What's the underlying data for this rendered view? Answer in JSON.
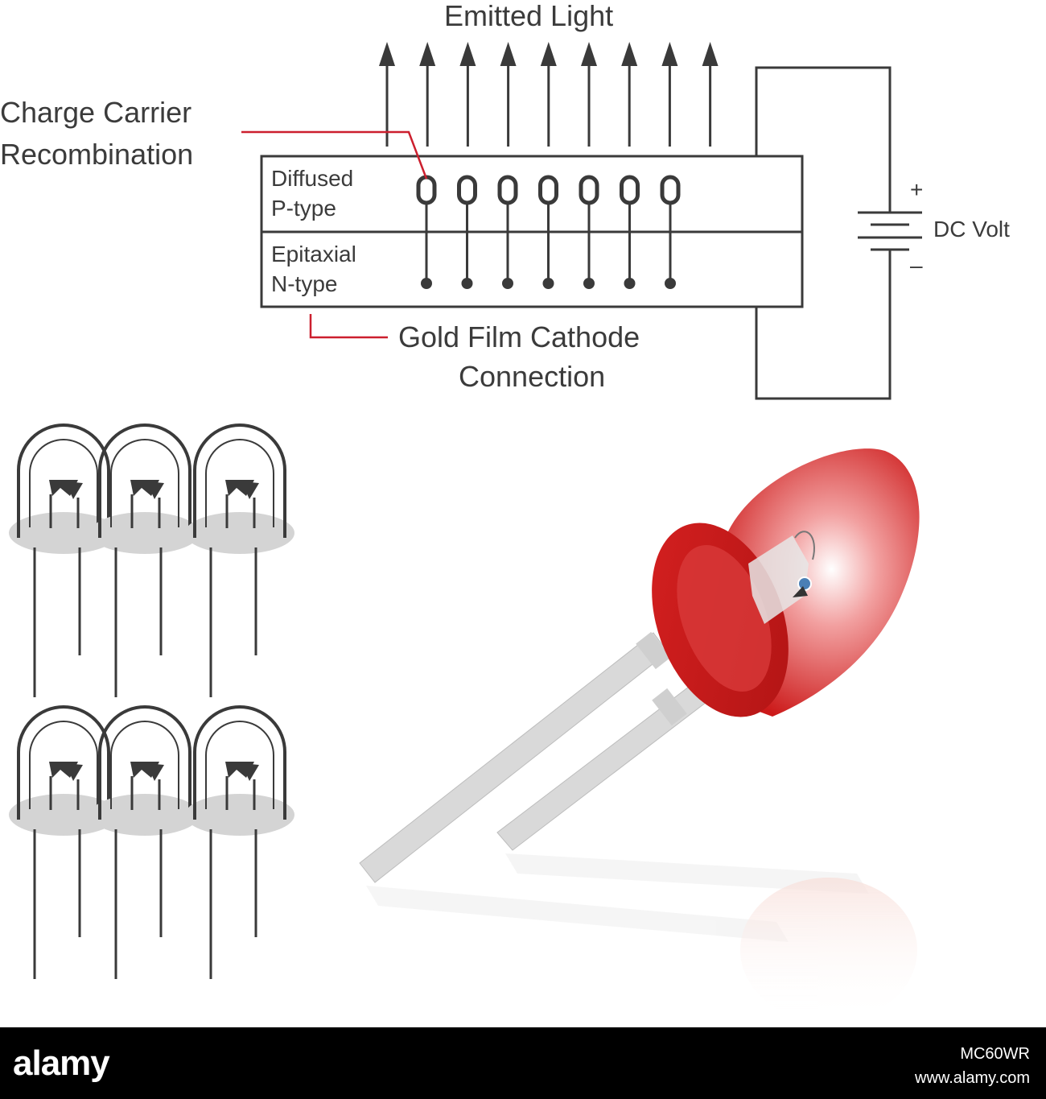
{
  "labels": {
    "emitted_light": "Emitted Light",
    "charge_carrier_line1": "Charge Carrier",
    "charge_carrier_line2": "Recombination",
    "diffused_line1": "Diffused",
    "diffused_line2": "P-type",
    "epitaxial_line1": "Epitaxial",
    "epitaxial_line2": "N-type",
    "battery_plus": "+",
    "battery_minus": "–",
    "dc_volt": "DC Volt",
    "gold_film_line1": "Gold Film Cathode",
    "gold_film_line2": "Connection"
  },
  "watermark": {
    "logo": "alamy",
    "image_id": "MC60WR",
    "url": "www.alamy.com"
  },
  "colors": {
    "line": "#3a3a3a",
    "leader_red": "#cc1f2e",
    "led_red": "#cc1a1a",
    "footer": "#000000"
  },
  "counts": {
    "light_arrows": 9,
    "carrier_pairs": 7,
    "small_led_icons": 6
  }
}
